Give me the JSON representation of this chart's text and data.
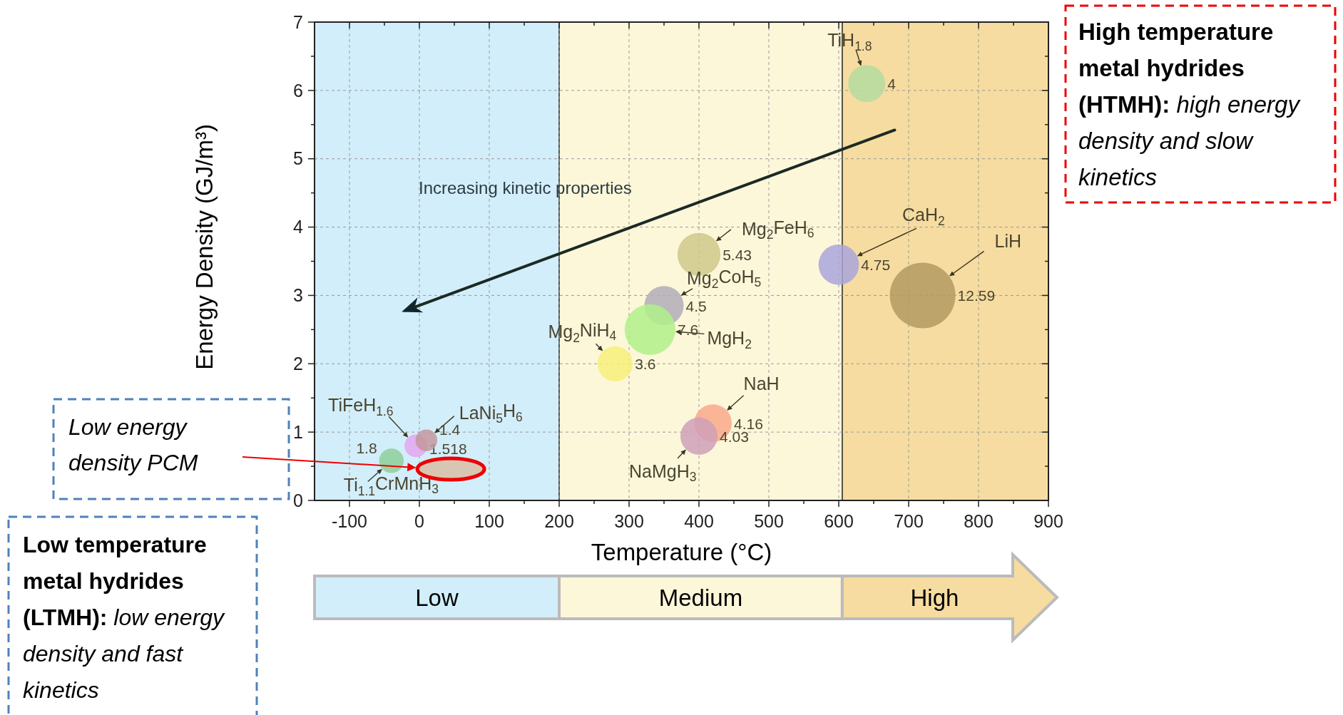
{
  "chart_data": {
    "type": "bubble",
    "xlabel": "Temperature (°C)",
    "ylabel": "Energy Density (GJ/m³)",
    "xlim": [
      -150,
      900
    ],
    "ylim": [
      0,
      7
    ],
    "xticks": [
      -100,
      {
        "value": -50,
        "label": null
      },
      0,
      {
        "value": 50,
        "label": null
      },
      100,
      {
        "value": 150,
        "label": null
      },
      200,
      {
        "value": 250,
        "label": null
      },
      300,
      {
        "value": 350,
        "label": null
      },
      400,
      {
        "value": 450,
        "label": null
      },
      500,
      {
        "value": 550,
        "label": null
      },
      600,
      {
        "value": 650,
        "label": null
      },
      700,
      {
        "value": 750,
        "label": null
      },
      800,
      {
        "value": 850,
        "label": null
      },
      900
    ],
    "yticks": [
      0,
      {
        "value": 0.5,
        "label": null
      },
      1,
      {
        "value": 1.5,
        "label": null
      },
      2,
      {
        "value": 2.5,
        "label": null
      },
      3,
      {
        "value": 3.5,
        "label": null
      },
      4,
      {
        "value": 4.5,
        "label": null
      },
      5,
      {
        "value": 5.5,
        "label": null
      },
      6,
      {
        "value": 6.5,
        "label": null
      },
      7
    ],
    "grid": true,
    "bands": [
      {
        "axis": "x",
        "from": -150,
        "to": 200,
        "color": "#d2eefa"
      },
      {
        "axis": "x",
        "from": 200,
        "to": 605,
        "color": "#fdf7da"
      },
      {
        "axis": "x",
        "from": 605,
        "to": 900,
        "color": "#f6dca0"
      }
    ],
    "ref_lines": [
      {
        "axis": "x",
        "value": 200,
        "color": "#222222"
      },
      {
        "axis": "x",
        "value": 605,
        "color": "#222222"
      }
    ],
    "annotations": [
      "Increasing kinetic properties",
      "Low energy density PCM",
      "High temperature metal hydrides (HTMH):  high energy density and slow kinetics",
      "Low temperature metal hydrides (LTMH):  low energy density and fast kinetics",
      "Low",
      "Medium",
      "High",
      {
        "text": "4",
        "x": 640,
        "y": 6.1
      },
      {
        "text": "5.43",
        "x": 400,
        "y": 3.6
      },
      {
        "text": "4.75",
        "x": 600,
        "y": 3.45
      },
      {
        "text": "12.59",
        "x": 720,
        "y": 3.0
      },
      {
        "text": "4.5",
        "x": 350,
        "y": 2.85
      },
      {
        "text": "7.6",
        "x": 330,
        "y": 2.5
      },
      {
        "text": "3.6",
        "x": 280,
        "y": 2.0
      },
      {
        "text": "4.16",
        "x": 420,
        "y": 1.13
      },
      {
        "text": "4.03",
        "x": 400,
        "y": 0.94
      },
      {
        "text": "1.518",
        "x": -5,
        "y": 0.8
      },
      {
        "text": "1.4",
        "x": 10,
        "y": 0.88
      },
      {
        "text": "1.8",
        "x": -40,
        "y": 0.58
      }
    ],
    "series": [
      {
        "name": "TiH$_{1.8}$",
        "color": "#b5dca0",
        "x": [
          640
        ],
        "values": [
          6.1
        ],
        "sizes": [
          0.32
        ]
      },
      {
        "name": "Mg$_{2}$FeH$_{6}$",
        "color": "#cfc88a",
        "x": [
          400
        ],
        "values": [
          3.6
        ],
        "sizes": [
          0.43
        ]
      },
      {
        "name": "CaH$_{2}$",
        "color": "#aaa6da",
        "x": [
          600
        ],
        "values": [
          3.45
        ],
        "sizes": [
          0.38
        ]
      },
      {
        "name": "LiH",
        "color": "#b39a62",
        "x": [
          720
        ],
        "values": [
          3.0
        ],
        "sizes": [
          1
        ]
      },
      {
        "name": "Mg$_{2}$CoH$_{5}$",
        "color": "#b0adb8",
        "x": [
          350
        ],
        "values": [
          2.85
        ],
        "sizes": [
          0.36
        ]
      },
      {
        "name": "MgH$_{2}$",
        "color": "#b0f08a",
        "x": [
          330
        ],
        "values": [
          2.5
        ],
        "sizes": [
          0.6
        ]
      },
      {
        "name": "Mg$_{2}$NiH$_{4}$",
        "color": "#f7f07a",
        "x": [
          280
        ],
        "values": [
          2.0
        ],
        "sizes": [
          0.29
        ]
      },
      {
        "name": "NaH",
        "color": "#f9a88a",
        "x": [
          420
        ],
        "values": [
          1.13
        ],
        "sizes": [
          0.33
        ]
      },
      {
        "name": "NaMgH$_{3}$",
        "color": "#cfa0b8",
        "x": [
          400
        ],
        "values": [
          0.94
        ],
        "sizes": [
          0.32
        ]
      },
      {
        "name": "TiFeH$_{1.6}$",
        "color": "#e4a6f0",
        "x": [
          -5
        ],
        "values": [
          0.8
        ],
        "sizes": [
          0.12
        ]
      },
      {
        "name": "LaNi$_{5}$H$_{6}$",
        "color": "#c4989e",
        "x": [
          10
        ],
        "values": [
          0.88
        ],
        "sizes": [
          0.11
        ]
      },
      {
        "name": "Ti$_{1.1}$CrMnH$_{3}$",
        "color": "#8fcf9a",
        "x": [
          -40
        ],
        "values": [
          0.58
        ],
        "sizes": [
          0.14
        ]
      }
    ]
  }
}
